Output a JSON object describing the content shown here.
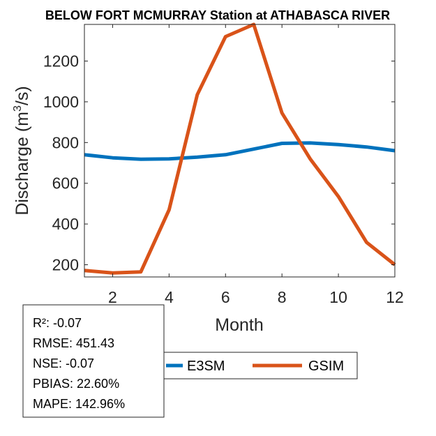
{
  "colors": {
    "e3sm": "#0072BD",
    "gsim": "#D95319",
    "axis": "#262626",
    "background": "#ffffff"
  },
  "chart_data": {
    "type": "line",
    "title": "BELOW FORT MCMURRAY  Station at  ATHABASCA RIVER",
    "xlabel": "Month",
    "ylabel": "Discharge (m3/s)",
    "ylabel_parts": {
      "prefix": "Discharge (m",
      "superscript": "3",
      "suffix": "/s)"
    },
    "xlim": [
      1,
      12
    ],
    "ylim": [
      140,
      1380
    ],
    "x_ticks": [
      2,
      4,
      6,
      8,
      10,
      12
    ],
    "y_ticks": [
      200,
      400,
      600,
      800,
      1000,
      1200
    ],
    "grid": false,
    "x": [
      1,
      2,
      3,
      4,
      5,
      6,
      7,
      8,
      9,
      10,
      11,
      12
    ],
    "series": [
      {
        "name": "E3SM",
        "color": "#0072BD",
        "values": [
          740,
          725,
          718,
          720,
          728,
          740,
          768,
          796,
          798,
          790,
          778,
          760
        ]
      },
      {
        "name": "GSIM",
        "color": "#D95319",
        "values": [
          172,
          160,
          165,
          470,
          1035,
          1320,
          1380,
          945,
          720,
          535,
          310,
          200
        ]
      }
    ],
    "legend": {
      "placement": "bottom-right",
      "entries": [
        "E3SM",
        "GSIM"
      ]
    }
  },
  "stats": {
    "lines": [
      "R²: -0.07",
      "RMSE: 451.43",
      "NSE: -0.07",
      "PBIAS: 22.60%",
      "MAPE: 142.96%"
    ]
  }
}
